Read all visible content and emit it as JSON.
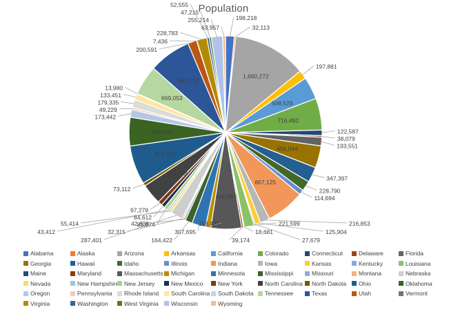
{
  "chart_data": {
    "type": "pie",
    "title": "Population",
    "legend_position": "bottom",
    "label_format": "comma-thousands",
    "inside_label_threshold": 400000,
    "label_color": "#404040",
    "leader_line_color": "#a6a6a6",
    "title_color": "#595959",
    "series": [
      {
        "name": "Alabama",
        "value": 198218,
        "color": "#4472C4"
      },
      {
        "name": "Alaska",
        "value": 32113,
        "color": "#ED7D31"
      },
      {
        "name": "Arizona",
        "value": 1660272,
        "color": "#A5A5A5"
      },
      {
        "name": "Arkansas",
        "value": 197881,
        "color": "#FFC000"
      },
      {
        "name": "California",
        "value": 508529,
        "color": "#5B9BD5"
      },
      {
        "name": "Colorado",
        "value": 716492,
        "color": "#70AD47"
      },
      {
        "name": "Connecticut",
        "value": 122587,
        "color": "#264478"
      },
      {
        "name": "Delaware",
        "value": 38079,
        "color": "#9E480E"
      },
      {
        "name": "Florida",
        "value": 193551,
        "color": "#636363"
      },
      {
        "name": "Georgia",
        "value": 498044,
        "color": "#997300"
      },
      {
        "name": "Hawaii",
        "value": 347397,
        "color": "#255E91"
      },
      {
        "name": "Idaho",
        "value": 228790,
        "color": "#43682B"
      },
      {
        "name": "Illinois",
        "value": 114694,
        "color": "#698ED0"
      },
      {
        "name": "Indiana",
        "value": 867125,
        "color": "#F1975A"
      },
      {
        "name": "Iowa",
        "value": 216853,
        "color": "#B7B7B7"
      },
      {
        "name": "Kansas",
        "value": 125904,
        "color": "#FFCD33"
      },
      {
        "name": "Kentucky",
        "value": 27679,
        "color": "#7CAFDD"
      },
      {
        "name": "Louisiana",
        "value": 221599,
        "color": "#8CC168"
      },
      {
        "name": "Maine",
        "value": 18681,
        "color": "#2A4A7C"
      },
      {
        "name": "Maryland",
        "value": 39174,
        "color": "#8A3E0C"
      },
      {
        "name": "Massachusetts",
        "value": 694583,
        "color": "#575757"
      },
      {
        "name": "Michigan",
        "value": 118427,
        "color": "#BC8E00"
      },
      {
        "name": "Minnesota",
        "value": 307695,
        "color": "#2E74B5"
      },
      {
        "name": "Mississippi",
        "value": 164422,
        "color": "#3F6228"
      },
      {
        "name": "Missouri",
        "value": 42838,
        "color": "#8FAADC"
      },
      {
        "name": "Montana",
        "value": 32315,
        "color": "#F4B183"
      },
      {
        "name": "Nebraska",
        "value": 287401,
        "color": "#CFCECE"
      },
      {
        "name": "Nevada",
        "value": 55414,
        "color": "#FFD966"
      },
      {
        "name": "New Hampshire",
        "value": 43412,
        "color": "#9DC3E6"
      },
      {
        "name": "New Jersey",
        "value": 83974,
        "color": "#A9D18E"
      },
      {
        "name": "New Mexico",
        "value": 84612,
        "color": "#1B2F54"
      },
      {
        "name": "New York",
        "value": 97279,
        "color": "#7C3A10"
      },
      {
        "name": "North Carolina",
        "value": 464758,
        "color": "#424242"
      },
      {
        "name": "North Dakota",
        "value": 73112,
        "color": "#6E5800"
      },
      {
        "name": "Ohio",
        "value": 879170,
        "color": "#1F5C8D"
      },
      {
        "name": "Oklahoma",
        "value": 643648,
        "color": "#3A6324"
      },
      {
        "name": "Oregon",
        "value": 173442,
        "color": "#B4C7E7"
      },
      {
        "name": "Pennsylvania",
        "value": 49229,
        "color": "#F6CBAD"
      },
      {
        "name": "Rhode Island",
        "value": 179335,
        "color": "#DBDBDB"
      },
      {
        "name": "South Carolina",
        "value": 133451,
        "color": "#FFE699"
      },
      {
        "name": "South Dakota",
        "value": 13980,
        "color": "#BDD7EE"
      },
      {
        "name": "Tennessee",
        "value": 669053,
        "color": "#B7D7A0"
      },
      {
        "name": "Texas",
        "value": 950715,
        "color": "#2C5697"
      },
      {
        "name": "Utah",
        "value": 200591,
        "color": "#BC5612"
      },
      {
        "name": "Vermont",
        "value": 7436,
        "color": "#757575"
      },
      {
        "name": "Virginia",
        "value": 228783,
        "color": "#B38B00"
      },
      {
        "name": "Washington",
        "value": 52555,
        "color": "#38668F"
      },
      {
        "name": "West Virginia",
        "value": 47215,
        "color": "#4E7A31"
      },
      {
        "name": "Wisconsin",
        "value": 255214,
        "color": "#AFC3E8"
      },
      {
        "name": "Wyoming",
        "value": 63957,
        "color": "#F5BE94"
      }
    ]
  }
}
